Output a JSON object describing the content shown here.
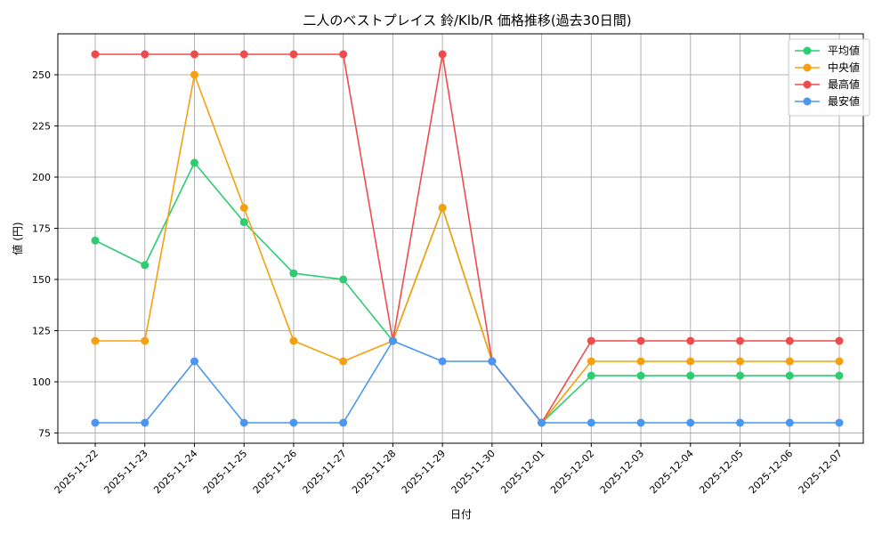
{
  "chart_data": {
    "type": "line",
    "title": "二人のベストプレイス 鈴/Klb/R 価格推移(過去30日間)",
    "xlabel": "日付",
    "ylabel": "値 (円)",
    "categories": [
      "2025-11-22",
      "2025-11-23",
      "2025-11-24",
      "2025-11-25",
      "2025-11-26",
      "2025-11-27",
      "2025-11-28",
      "2025-11-29",
      "2025-11-30",
      "2025-12-01",
      "2025-12-02",
      "2025-12-03",
      "2025-12-04",
      "2025-12-05",
      "2025-12-06",
      "2025-12-07"
    ],
    "ylim": [
      70,
      270
    ],
    "yticks": [
      75,
      100,
      125,
      150,
      175,
      200,
      225,
      250
    ],
    "grid": true,
    "legend_position": "top-right",
    "series": [
      {
        "name": "平均値",
        "color": "#2ecc71",
        "values": [
          169,
          157,
          207,
          178,
          153,
          150,
          120,
          185,
          110,
          80,
          103,
          103,
          103,
          103,
          103,
          103
        ]
      },
      {
        "name": "中央値",
        "color": "#f5a00f",
        "values": [
          120,
          120,
          250,
          185,
          120,
          110,
          120,
          185,
          110,
          80,
          110,
          110,
          110,
          110,
          110,
          110
        ]
      },
      {
        "name": "最高値",
        "color": "#ef4b4b",
        "values": [
          260,
          260,
          260,
          260,
          260,
          260,
          120,
          260,
          110,
          80,
          120,
          120,
          120,
          120,
          120,
          120
        ]
      },
      {
        "name": "最安値",
        "color": "#4a96f0",
        "values": [
          80,
          80,
          110,
          80,
          80,
          80,
          120,
          110,
          110,
          80,
          80,
          80,
          80,
          80,
          80,
          80
        ]
      }
    ]
  }
}
